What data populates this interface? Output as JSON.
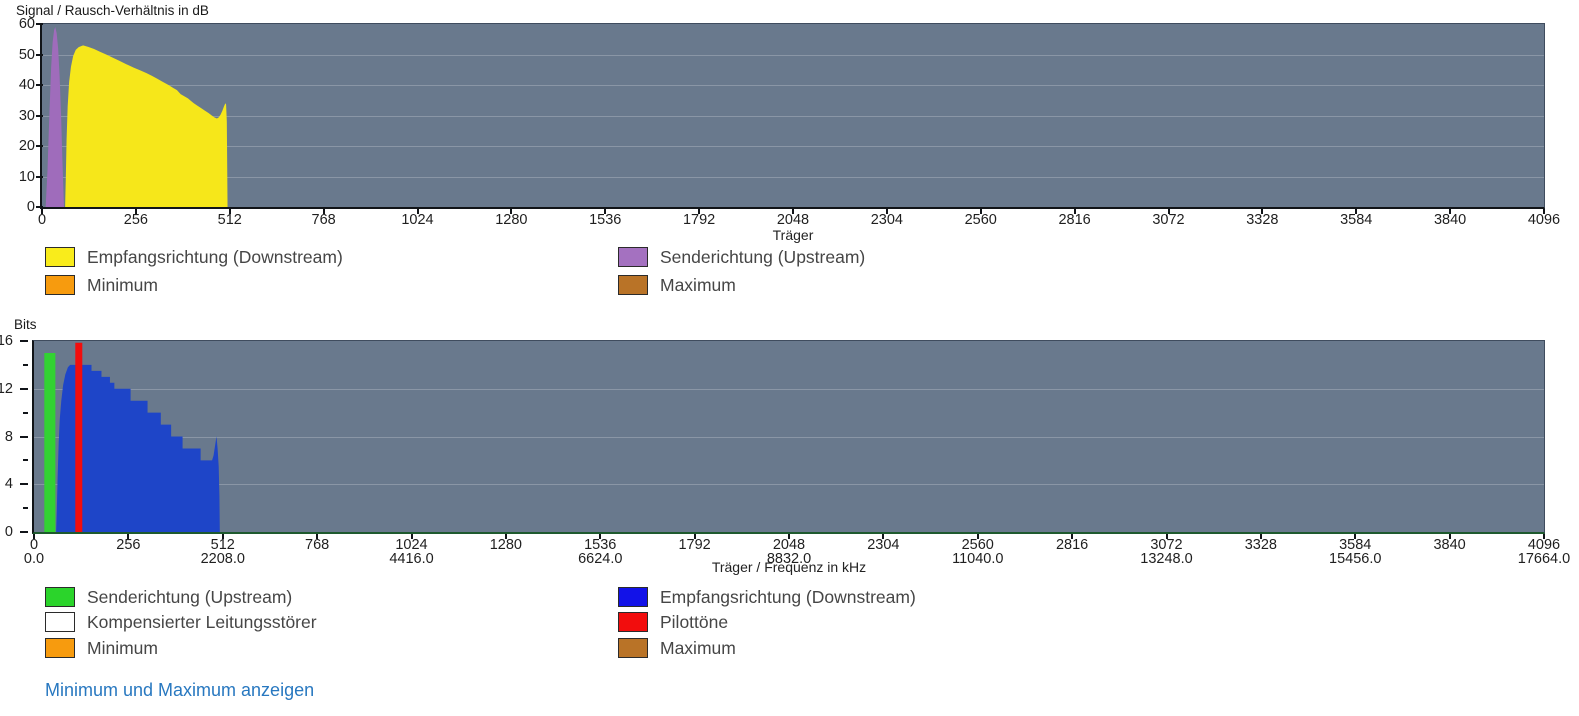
{
  "footer": {
    "link_label": "Minimum und Maximum anzeigen"
  },
  "colors": {
    "plot_background": "#69798D",
    "plot_border": "#3F4C5E",
    "axis_line": "#111418",
    "bits_baseline": "#1E5A2E",
    "grid_line": "rgba(255,255,255,0.22)",
    "tick_text": "#1F1F1F",
    "legend_text": "#464646",
    "link": "#2878C0"
  },
  "chart_data": [
    {
      "type": "area",
      "title": "Signal / Rausch-Verhältnis in dB",
      "xlabel": "Träger",
      "ylabel": "",
      "xlim": [
        0,
        4096
      ],
      "ylim": [
        0,
        60
      ],
      "x_ticks": [
        0,
        256,
        512,
        768,
        1024,
        1280,
        1536,
        1792,
        2048,
        2304,
        2560,
        2816,
        3072,
        3328,
        3584,
        3840,
        4096
      ],
      "y_ticks": [
        0,
        10,
        20,
        30,
        40,
        50,
        60
      ],
      "grid_y": [
        10,
        20,
        30,
        40,
        50
      ],
      "legend_position": "bottom",
      "series": [
        {
          "name": "Senderichtung (Upstream)",
          "color": "#9F6CBB",
          "points": [
            [
              10,
              0
            ],
            [
              15,
              12
            ],
            [
              20,
              30
            ],
            [
              25,
              46
            ],
            [
              29,
              54
            ],
            [
              33,
              58
            ],
            [
              36,
              59
            ],
            [
              40,
              57
            ],
            [
              44,
              52
            ],
            [
              48,
              43
            ],
            [
              52,
              30
            ],
            [
              56,
              14
            ],
            [
              60,
              0
            ]
          ]
        },
        {
          "name": "Empfangsrichtung (Downstream)",
          "color": "#F6E71A",
          "points": [
            [
              63,
              0
            ],
            [
              65,
              10
            ],
            [
              67,
              22
            ],
            [
              70,
              33
            ],
            [
              74,
              41
            ],
            [
              79,
              46
            ],
            [
              85,
              49.5
            ],
            [
              92,
              51.5
            ],
            [
              100,
              52.4
            ],
            [
              112,
              53
            ],
            [
              126,
              52.5
            ],
            [
              142,
              51.8
            ],
            [
              158,
              50.9
            ],
            [
              175,
              50
            ],
            [
              192,
              49
            ],
            [
              210,
              48
            ],
            [
              230,
              46.8
            ],
            [
              250,
              45.7
            ],
            [
              268,
              44.8
            ],
            [
              285,
              43.9
            ],
            [
              300,
              43
            ],
            [
              315,
              42
            ],
            [
              330,
              41
            ],
            [
              345,
              40
            ],
            [
              358,
              39
            ],
            [
              368,
              38.3
            ],
            [
              378,
              37
            ],
            [
              388,
              36.3
            ],
            [
              398,
              35.6
            ],
            [
              406,
              34.8
            ],
            [
              414,
              34
            ],
            [
              424,
              33.2
            ],
            [
              434,
              32.4
            ],
            [
              444,
              31.6
            ],
            [
              454,
              30.8
            ],
            [
              463,
              30
            ],
            [
              470,
              29.4
            ],
            [
              477,
              29
            ],
            [
              482,
              29.4
            ],
            [
              487,
              30.3
            ],
            [
              492,
              31.6
            ],
            [
              496,
              32.9
            ],
            [
              500,
              34
            ],
            [
              502,
              33.6
            ],
            [
              504,
              28
            ],
            [
              505,
              14
            ],
            [
              506,
              0
            ]
          ]
        }
      ],
      "legend": [
        {
          "label": "Empfangsrichtung (Downstream)",
          "color": "#F9EC1B"
        },
        {
          "label": "Senderichtung (Upstream)",
          "color": "#A471C0"
        },
        {
          "label": "Minimum",
          "color": "#F79B0E"
        },
        {
          "label": "Maximum",
          "color": "#B97327"
        }
      ]
    },
    {
      "type": "area",
      "title": "Bits",
      "xlabel": "Träger / Frequenz in kHz",
      "ylabel": "",
      "xlim": [
        0,
        4096
      ],
      "ylim": [
        0,
        16
      ],
      "x_ticks": [
        0,
        256,
        512,
        768,
        1024,
        1280,
        1536,
        1792,
        2048,
        2304,
        2560,
        2816,
        3072,
        3328,
        3584,
        3840,
        4096
      ],
      "x_freq_ticks": [
        {
          "x": 0,
          "label": "0.0"
        },
        {
          "x": 512,
          "label": "2208.0"
        },
        {
          "x": 1024,
          "label": "4416.0"
        },
        {
          "x": 1536,
          "label": "6624.0"
        },
        {
          "x": 2048,
          "label": "8832.0"
        },
        {
          "x": 2560,
          "label": "11040.0"
        },
        {
          "x": 3072,
          "label": "13248.0"
        },
        {
          "x": 3584,
          "label": "15456.0"
        },
        {
          "x": 4096,
          "label": "17664.0"
        }
      ],
      "y_ticks": [
        0,
        4,
        8,
        12,
        16
      ],
      "y_minor_ticks": [
        2,
        6,
        10,
        14
      ],
      "grid_y": [
        4,
        8,
        12
      ],
      "legend_position": "bottom",
      "series": [
        {
          "name": "Senderichtung (Upstream)",
          "color": "#32D232",
          "points": [
            [
              28,
              0
            ],
            [
              28,
              15
            ],
            [
              58,
              15
            ],
            [
              58,
              0
            ]
          ]
        },
        {
          "name": "Empfangsrichtung (Downstream)",
          "color": "#1E45C8",
          "points": [
            [
              60,
              0
            ],
            [
              62,
              2
            ],
            [
              64,
              4.5
            ],
            [
              67,
              7.5
            ],
            [
              70,
              9.5
            ],
            [
              74,
              11
            ],
            [
              79,
              12.3
            ],
            [
              85,
              13.2
            ],
            [
              92,
              13.8
            ],
            [
              98,
              14
            ],
            [
              156,
              14
            ],
            [
              156,
              13.5
            ],
            [
              183,
              13.5
            ],
            [
              183,
              13
            ],
            [
              206,
              13
            ],
            [
              206,
              12.5
            ],
            [
              218,
              12.5
            ],
            [
              218,
              12
            ],
            [
              262,
              12
            ],
            [
              262,
              11
            ],
            [
              308,
              11
            ],
            [
              308,
              10
            ],
            [
              344,
              10
            ],
            [
              344,
              9
            ],
            [
              372,
              9
            ],
            [
              372,
              8
            ],
            [
              403,
              8
            ],
            [
              403,
              7
            ],
            [
              452,
              7
            ],
            [
              452,
              6
            ],
            [
              483,
              6
            ],
            [
              487,
              6.4
            ],
            [
              492,
              7.4
            ],
            [
              495,
              8
            ],
            [
              498,
              7
            ],
            [
              501,
              5.5
            ],
            [
              503,
              3
            ],
            [
              504,
              0
            ]
          ]
        },
        {
          "name": "Pilottöne",
          "color": "#F20D0D",
          "points": [
            [
              112,
              0
            ],
            [
              112,
              15.85
            ],
            [
              131,
              15.85
            ],
            [
              131,
              0
            ]
          ]
        }
      ],
      "legend": [
        {
          "label": "Senderichtung (Upstream)",
          "color": "#2BD42B"
        },
        {
          "label": "Empfangsrichtung (Downstream)",
          "color": "#1212E8"
        },
        {
          "label": "Kompensierter Leitungsstörer",
          "color": "#FFFFFF"
        },
        {
          "label": "Pilottöne",
          "color": "#F20D0D"
        },
        {
          "label": "Minimum",
          "color": "#F79B0E"
        },
        {
          "label": "Maximum",
          "color": "#B97327"
        }
      ]
    }
  ]
}
